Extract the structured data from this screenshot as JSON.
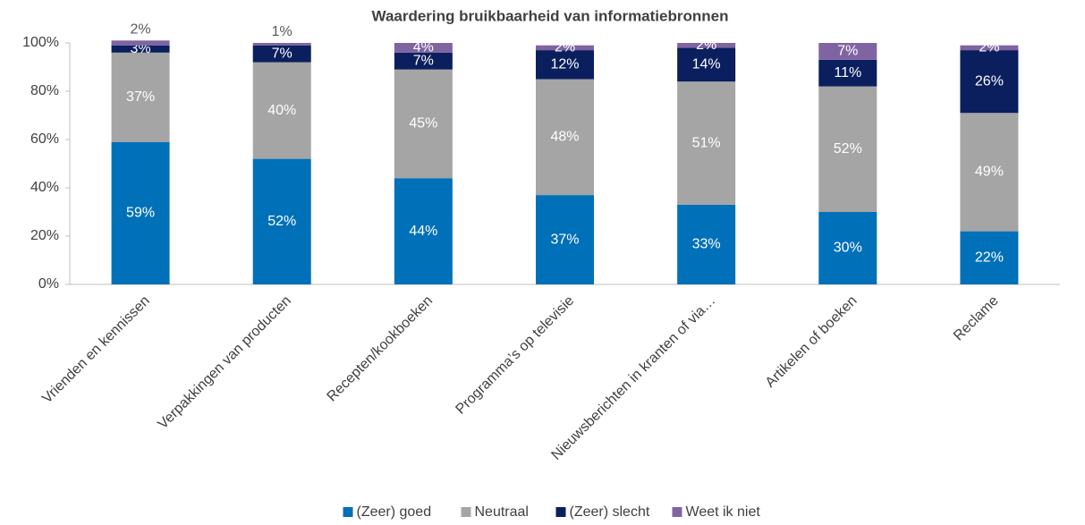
{
  "chart_data": {
    "type": "stacked_bar",
    "title": "Waardering bruikbaarheid van informatiebronnen",
    "categories": [
      "Vrienden en kennissen",
      "Verpakkingen van producten",
      "Recepten/kookboeken",
      "Programma’s op televisie",
      "Nieuwsberichten in kranten of via…",
      "Artikelen of boeken",
      "Reclame"
    ],
    "series": [
      {
        "name": "(Zeer) goed",
        "color": "#0070b8",
        "values": [
          59,
          52,
          44,
          37,
          33,
          30,
          22
        ],
        "value_labels": [
          "59%",
          "52%",
          "44%",
          "37%",
          "33%",
          "30%",
          "22%"
        ]
      },
      {
        "name": "Neutraal",
        "color": "#a5a5a5",
        "values": [
          37,
          40,
          45,
          48,
          51,
          52,
          49
        ],
        "value_labels": [
          "37%",
          "40%",
          "45%",
          "48%",
          "51%",
          "52%",
          "49%"
        ]
      },
      {
        "name": "(Zeer) slecht",
        "color": "#0b1f5e",
        "values": [
          3,
          7,
          7,
          12,
          14,
          11,
          26
        ],
        "value_labels": [
          "3%",
          "7%",
          "7%",
          "12%",
          "14%",
          "11%",
          "26%"
        ]
      },
      {
        "name": "Weet ik niet",
        "color": "#8064a2",
        "values": [
          2,
          1,
          4,
          2,
          2,
          7,
          2
        ],
        "value_labels": [
          "2%",
          "1%",
          "4%",
          "2%",
          "2%",
          "7%",
          "2%"
        ]
      }
    ],
    "ylim": [
      0,
      100
    ],
    "yticks": [
      {
        "value": 0,
        "label": "0%"
      },
      {
        "value": 20,
        "label": "20%"
      },
      {
        "value": 40,
        "label": "40%"
      },
      {
        "value": 60,
        "label": "60%"
      },
      {
        "value": 80,
        "label": "80%"
      },
      {
        "value": 100,
        "label": "100%"
      }
    ],
    "legend": "bottom"
  }
}
